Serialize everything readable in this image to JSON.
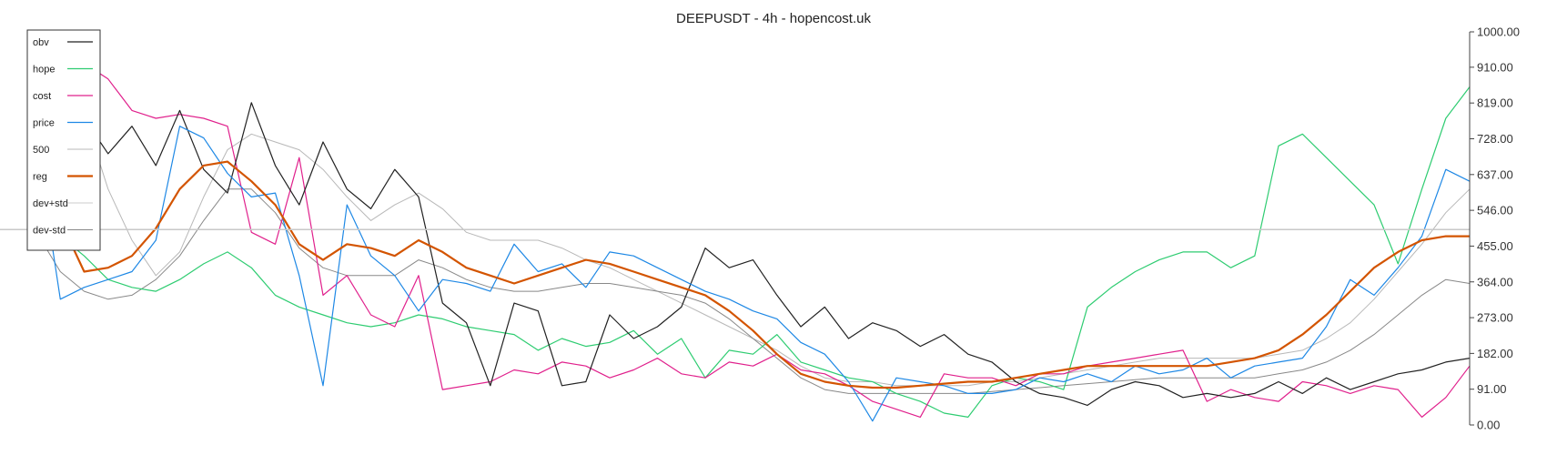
{
  "chart_data": {
    "type": "line",
    "title": "DEEPUSDT - 4h - hopencost.uk",
    "xlabel": "",
    "ylabel": "",
    "ylim": [
      0,
      1000
    ],
    "y_ticks": [
      "0.00",
      "91.00",
      "182.00",
      "273.00",
      "364.00",
      "455.00",
      "546.00",
      "637.00",
      "728.00",
      "819.00",
      "910.00",
      "1000.00"
    ],
    "x_ticks": [],
    "grid": false,
    "legend_position": "top-left",
    "reference_line": 497,
    "x": [
      0,
      5,
      10,
      15,
      20,
      25,
      30,
      35,
      40,
      45,
      50,
      55,
      60,
      65,
      70,
      75,
      80,
      85,
      90,
      95,
      100,
      105,
      110,
      115,
      120,
      125,
      130,
      135,
      140,
      145,
      150,
      155,
      160,
      165,
      170,
      175,
      180,
      185,
      190,
      195,
      200,
      205,
      210,
      215,
      220,
      225,
      230,
      235,
      240,
      245,
      250,
      255,
      260,
      265,
      270,
      275,
      280,
      285,
      290,
      295,
      300
    ],
    "series": [
      {
        "name": "obv",
        "color": "#222222",
        "width": 1.2,
        "values": [
          840,
          690,
          780,
          690,
          760,
          660,
          800,
          650,
          590,
          820,
          660,
          560,
          720,
          600,
          550,
          650,
          580,
          310,
          260,
          100,
          310,
          290,
          100,
          110,
          280,
          220,
          250,
          300,
          450,
          400,
          420,
          330,
          250,
          300,
          220,
          260,
          240,
          200,
          230,
          180,
          160,
          110,
          80,
          70,
          50,
          90,
          110,
          100,
          70,
          80,
          70,
          80,
          110,
          80,
          120,
          90,
          110,
          130,
          140,
          160,
          170
        ]
      },
      {
        "name": "hope",
        "color": "#2ecc71",
        "width": 1.2,
        "values": [
          490,
          480,
          430,
          370,
          350,
          340,
          370,
          410,
          440,
          400,
          330,
          300,
          280,
          260,
          250,
          260,
          280,
          270,
          250,
          240,
          230,
          190,
          220,
          200,
          210,
          240,
          180,
          220,
          120,
          190,
          180,
          230,
          160,
          140,
          120,
          110,
          80,
          60,
          30,
          20,
          100,
          120,
          110,
          90,
          300,
          350,
          390,
          420,
          440,
          440,
          400,
          430,
          710,
          740,
          680,
          620,
          560,
          410,
          600,
          780,
          860
        ]
      },
      {
        "name": "cost",
        "color": "#e0208c",
        "width": 1.2,
        "values": [
          970,
          990,
          920,
          880,
          800,
          780,
          790,
          780,
          760,
          490,
          460,
          680,
          330,
          380,
          280,
          250,
          380,
          90,
          100,
          110,
          140,
          130,
          160,
          150,
          120,
          140,
          170,
          130,
          120,
          160,
          150,
          180,
          140,
          130,
          100,
          60,
          40,
          20,
          130,
          120,
          120,
          100,
          130,
          130,
          150,
          160,
          170,
          180,
          190,
          60,
          90,
          70,
          60,
          110,
          100,
          80,
          100,
          90,
          20,
          70,
          150
        ]
      },
      {
        "name": "price",
        "color": "#1e88e5",
        "width": 1.2,
        "values": [
          720,
          320,
          350,
          370,
          390,
          470,
          760,
          730,
          640,
          580,
          590,
          380,
          100,
          560,
          430,
          380,
          290,
          370,
          360,
          340,
          460,
          390,
          410,
          350,
          440,
          430,
          400,
          370,
          340,
          320,
          290,
          270,
          210,
          180,
          110,
          10,
          120,
          110,
          100,
          80,
          80,
          90,
          120,
          110,
          130,
          110,
          150,
          130,
          140,
          170,
          120,
          150,
          160,
          170,
          250,
          370,
          330,
          400,
          480,
          650,
          620
        ]
      },
      {
        "name": "500",
        "color": "#b8b8b8",
        "width": 1.0,
        "values": [
          900,
          870,
          790,
          600,
          470,
          380,
          440,
          580,
          700,
          740,
          720,
          700,
          650,
          580,
          520,
          560,
          590,
          550,
          490,
          470,
          470,
          470,
          450,
          420,
          400,
          370,
          340,
          310,
          280,
          250,
          220,
          190,
          150,
          120,
          110,
          110,
          100,
          100,
          100,
          100,
          110,
          110,
          120,
          130,
          140,
          150,
          160,
          170,
          170,
          170,
          170,
          170,
          180,
          190,
          220,
          260,
          320,
          390,
          460,
          540,
          600
        ]
      },
      {
        "name": "reg",
        "color": "#d35400",
        "width": 2.2,
        "values": [
          690,
          520,
          390,
          400,
          430,
          500,
          600,
          660,
          670,
          620,
          560,
          460,
          420,
          460,
          450,
          430,
          470,
          440,
          400,
          380,
          360,
          380,
          400,
          420,
          410,
          390,
          370,
          350,
          330,
          290,
          240,
          180,
          130,
          110,
          100,
          95,
          95,
          100,
          105,
          110,
          110,
          120,
          130,
          140,
          150,
          150,
          150,
          150,
          150,
          150,
          160,
          170,
          190,
          230,
          280,
          340,
          400,
          440,
          470,
          480,
          480
        ]
      },
      {
        "name": "dev+std",
        "color": "#cccccc",
        "width": 1.0,
        "values": [
          null,
          null,
          null,
          null,
          null,
          null,
          null,
          null,
          null,
          null,
          null,
          null,
          null,
          null,
          null,
          null,
          null,
          null,
          null,
          null,
          null,
          null,
          null,
          null,
          null,
          null,
          null,
          null,
          null,
          null,
          null,
          null,
          null,
          null,
          null,
          null,
          null,
          null,
          null,
          null,
          null,
          null,
          null,
          null,
          null,
          null,
          null,
          null,
          null,
          null,
          null,
          null,
          null,
          null,
          null,
          null,
          null,
          null,
          null,
          null,
          null
        ]
      },
      {
        "name": "dev-std",
        "color": "#888888",
        "width": 1.0,
        "values": [
          490,
          390,
          340,
          320,
          330,
          370,
          430,
          520,
          600,
          600,
          540,
          450,
          400,
          380,
          380,
          380,
          420,
          400,
          370,
          350,
          340,
          340,
          350,
          360,
          360,
          350,
          340,
          330,
          310,
          270,
          220,
          170,
          120,
          90,
          80,
          80,
          80,
          80,
          80,
          80,
          85,
          90,
          95,
          100,
          105,
          110,
          115,
          120,
          120,
          120,
          120,
          120,
          130,
          140,
          160,
          190,
          230,
          280,
          330,
          370,
          360
        ]
      }
    ]
  }
}
